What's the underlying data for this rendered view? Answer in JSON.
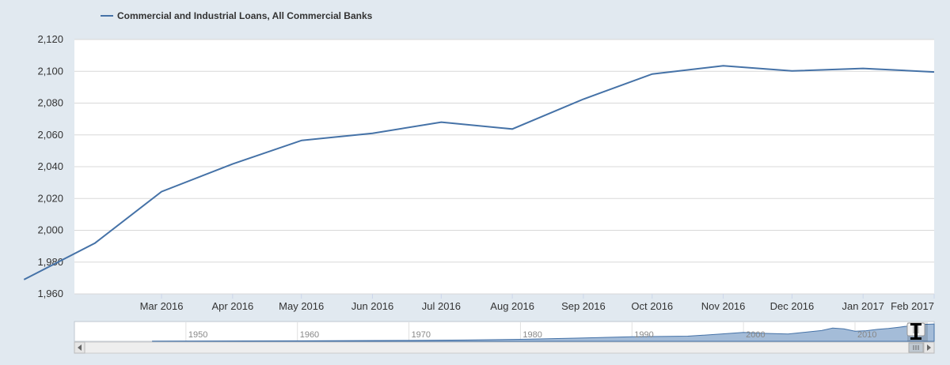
{
  "chart_data": {
    "type": "line",
    "title": "",
    "xlabel": "",
    "ylabel": "",
    "series": [
      {
        "name": "Commercial and Industrial Loans, All Commercial Banks",
        "color": "#4572a7",
        "x": [
          "2016-01-01",
          "2016-02-01",
          "2016-03-01",
          "2016-04-01",
          "2016-05-01",
          "2016-06-01",
          "2016-07-01",
          "2016-08-01",
          "2016-09-01",
          "2016-10-01",
          "2016-11-01",
          "2016-12-01",
          "2017-01-01",
          "2017-02-01"
        ],
        "values": [
          1969,
          1992,
          2024.3,
          2041.7,
          2056.5,
          2061,
          2068,
          2063.7,
          2082.5,
          2098.3,
          2103.5,
          2100.2,
          2101.8,
          2099.6
        ]
      }
    ],
    "x_tick_labels": [
      "Mar 2016",
      "Apr 2016",
      "May 2016",
      "Jun 2016",
      "Jul 2016",
      "Aug 2016",
      "Sep 2016",
      "Oct 2016",
      "Nov 2016",
      "Dec 2016",
      "Jan 2017",
      "Feb 2017"
    ],
    "y_tick_labels": [
      "1,960",
      "1,980",
      "2,000",
      "2,020",
      "2,040",
      "2,060",
      "2,080",
      "2,100",
      "2,120"
    ],
    "ylim": [
      1960,
      2120
    ],
    "xlim": [
      "2016-01-23",
      "2017-02-01"
    ],
    "grid": true,
    "legend_position": "top-left",
    "navigator": {
      "labels": [
        "1950",
        "1960",
        "1970",
        "1980",
        "1990",
        "2000",
        "2010"
      ],
      "series": [
        {
          "year": 1947,
          "value": 20
        },
        {
          "year": 1960,
          "value": 60
        },
        {
          "year": 1970,
          "value": 110
        },
        {
          "year": 1975,
          "value": 150
        },
        {
          "year": 1980,
          "value": 240
        },
        {
          "year": 1985,
          "value": 380
        },
        {
          "year": 1990,
          "value": 560
        },
        {
          "year": 1995,
          "value": 620
        },
        {
          "year": 1998,
          "value": 880
        },
        {
          "year": 2000,
          "value": 1080
        },
        {
          "year": 2002,
          "value": 960
        },
        {
          "year": 2004,
          "value": 880
        },
        {
          "year": 2007,
          "value": 1300
        },
        {
          "year": 2008,
          "value": 1600
        },
        {
          "year": 2009,
          "value": 1500
        },
        {
          "year": 2010,
          "value": 1220
        },
        {
          "year": 2011,
          "value": 1280
        },
        {
          "year": 2012,
          "value": 1450
        },
        {
          "year": 2013,
          "value": 1560
        },
        {
          "year": 2014,
          "value": 1720
        },
        {
          "year": 2015,
          "value": 1900
        },
        {
          "year": 2016.2,
          "value": 2050
        },
        {
          "year": 2017.1,
          "value": 2100
        }
      ]
    }
  },
  "colors": {
    "background": "#e1e9f0",
    "plot_background": "#ffffff",
    "gridline": "#d8d8d8",
    "line": "#4572a7",
    "navigator_fill": "#a4bcd8",
    "navigator_line": "#4572a7"
  }
}
